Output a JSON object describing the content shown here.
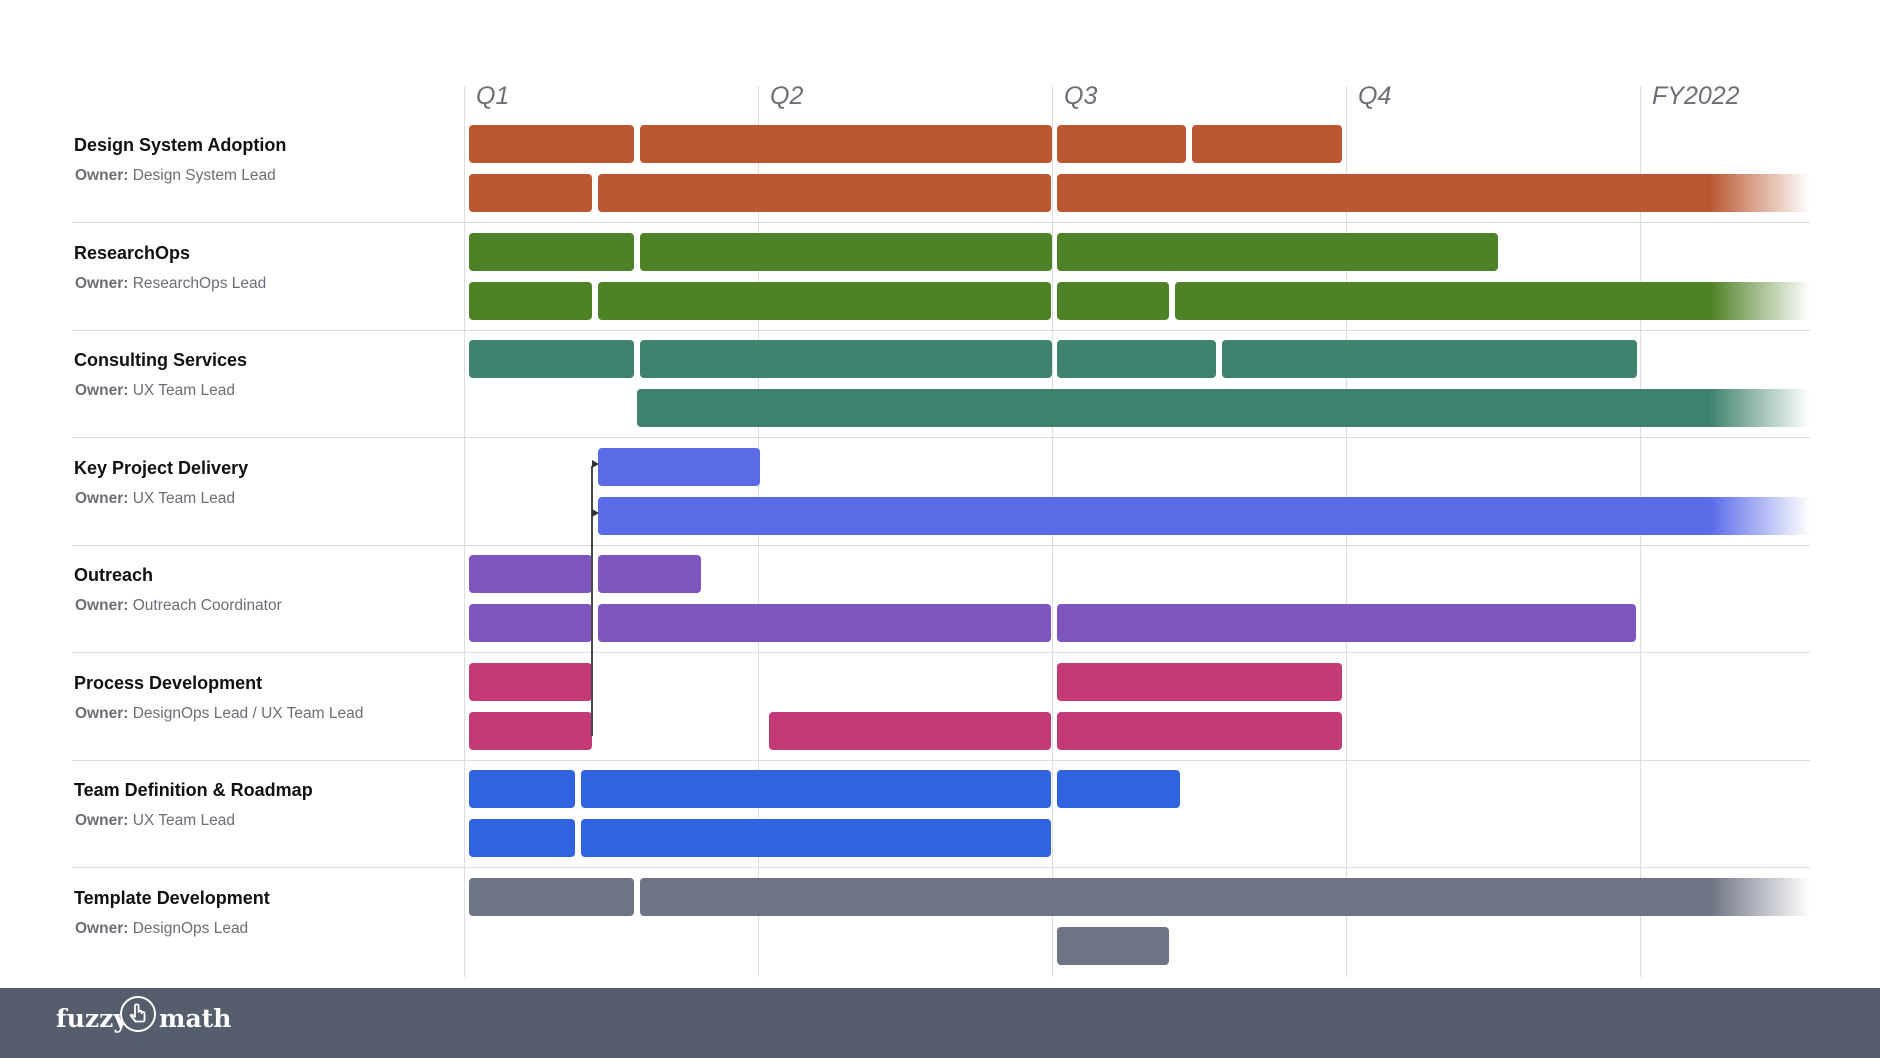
{
  "timeline": {
    "labels": [
      "Q1",
      "Q2",
      "Q3",
      "Q4",
      "FY2022"
    ]
  },
  "owner_prefix": "Owner:",
  "workstreams": [
    {
      "title": "Design System Adoption",
      "owner": "Design System Lead",
      "color": "#bb5831",
      "tracks": [
        [
          {
            "start": 0.0,
            "end": 0.56
          },
          {
            "start": 0.58,
            "end": 1.98
          },
          {
            "start": 2.0,
            "end": 2.44
          },
          {
            "start": 2.46,
            "end": 2.97
          }
        ],
        [
          {
            "start": 0.0,
            "end": 0.42
          },
          {
            "start": 0.44,
            "end": 1.98
          },
          {
            "start": 2.0,
            "end": 4.6,
            "open": true
          }
        ]
      ]
    },
    {
      "title": "ResearchOps",
      "owner": "ResearchOps Lead",
      "color": "#4f8126",
      "tracks": [
        [
          {
            "start": 0.0,
            "end": 0.56
          },
          {
            "start": 0.58,
            "end": 1.98
          },
          {
            "start": 2.0,
            "end": 3.5
          }
        ],
        [
          {
            "start": 0.0,
            "end": 0.42
          },
          {
            "start": 0.44,
            "end": 1.98
          },
          {
            "start": 2.0,
            "end": 2.38
          },
          {
            "start": 2.4,
            "end": 4.6,
            "open": true
          }
        ]
      ]
    },
    {
      "title": "Consulting Services",
      "owner": "UX Team Lead",
      "color": "#3f826f",
      "tracks": [
        [
          {
            "start": 0.0,
            "end": 0.56
          },
          {
            "start": 0.58,
            "end": 1.98
          },
          {
            "start": 2.0,
            "end": 2.54
          },
          {
            "start": 2.56,
            "end": 3.97
          }
        ],
        [
          {
            "start": 0.57,
            "end": 4.6,
            "open": true
          }
        ]
      ]
    },
    {
      "title": "Key Project Delivery",
      "owner": "UX Team Lead",
      "color": "#5b6be8",
      "tracks": [
        [
          {
            "start": 0.44,
            "end": 0.99
          }
        ],
        [
          {
            "start": 0.44,
            "end": 4.6,
            "open": true
          }
        ]
      ]
    },
    {
      "title": "Outreach",
      "owner": "Outreach Coordinator",
      "color": "#7e55bf",
      "tracks": [
        [
          {
            "start": 0.0,
            "end": 0.42
          },
          {
            "start": 0.44,
            "end": 0.79
          }
        ],
        [
          {
            "start": 0.0,
            "end": 0.42
          },
          {
            "start": 0.44,
            "end": 1.98
          },
          {
            "start": 2.0,
            "end": 3.97
          }
        ]
      ]
    },
    {
      "title": "Process Development",
      "owner": "DesignOps Lead / UX Team Lead",
      "color": "#c43a76",
      "tracks": [
        [
          {
            "start": 0.0,
            "end": 0.42
          },
          {
            "start": 2.0,
            "end": 2.97
          }
        ],
        [
          {
            "start": 0.0,
            "end": 0.42
          },
          {
            "start": 1.02,
            "end": 1.98
          },
          {
            "start": 2.0,
            "end": 2.97
          }
        ]
      ]
    },
    {
      "title": "Team Definition & Roadmap",
      "owner": "UX Team Lead",
      "color": "#3063e0",
      "tracks": [
        [
          {
            "start": 0.0,
            "end": 0.36
          },
          {
            "start": 0.38,
            "end": 1.98
          },
          {
            "start": 2.0,
            "end": 2.42
          }
        ],
        [
          {
            "start": 0.0,
            "end": 0.36
          },
          {
            "start": 0.38,
            "end": 1.98
          }
        ]
      ]
    },
    {
      "title": "Template Development",
      "owner": "DesignOps Lead",
      "color": "#6e7484",
      "tracks": [
        [
          {
            "start": 0.0,
            "end": 0.56
          },
          {
            "start": 0.58,
            "end": 4.6,
            "open": true
          }
        ],
        [
          {
            "start": 2.0,
            "end": 2.38
          }
        ]
      ]
    }
  ],
  "footer": {
    "logo_left": "fuzzy",
    "logo_right": "math",
    "logo_mark": "pointer-hand-icon"
  }
}
